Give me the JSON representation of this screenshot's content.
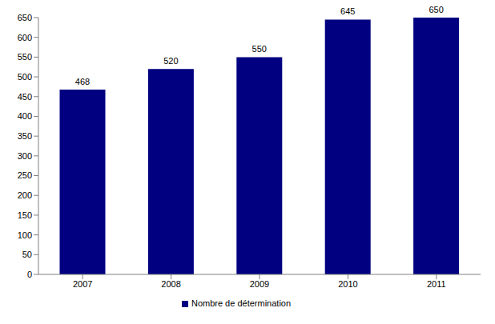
{
  "chart_data": {
    "type": "bar",
    "categories": [
      "2007",
      "2008",
      "2009",
      "2010",
      "2011"
    ],
    "series": [
      {
        "name": "Nombre de détermination",
        "color": "#000080",
        "values": [
          468,
          520,
          550,
          645,
          650
        ]
      }
    ],
    "ylim": [
      0,
      650
    ],
    "yticks": [
      0,
      50,
      100,
      150,
      200,
      250,
      300,
      350,
      400,
      450,
      500,
      550,
      600,
      650
    ],
    "grid": false,
    "data_labels": true,
    "legend": "bottom"
  }
}
